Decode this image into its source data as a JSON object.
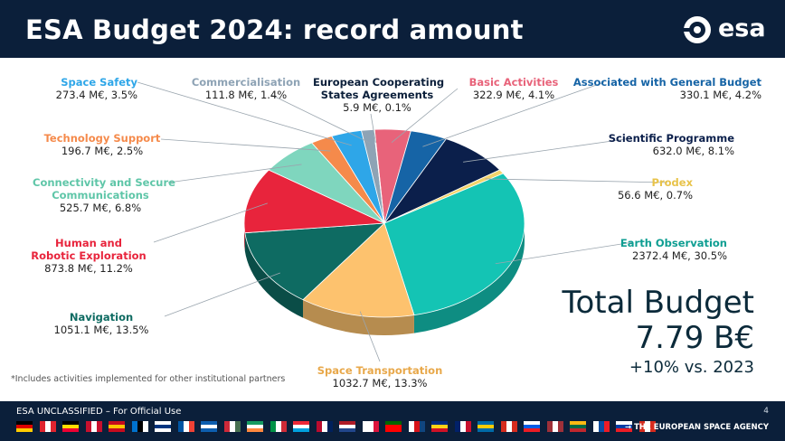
{
  "slide": {
    "title": "ESA Budget 2024: record amount",
    "logo_text": "esa",
    "logo_icon": "esa-logo-icon",
    "footnote": "*Includes activities implemented for other institutional partners",
    "total": {
      "label": "Total Budget",
      "value": "7.79 B€",
      "change": "+10% vs. 2023"
    },
    "footer": {
      "classification": "ESA UNCLASSIFIED – For Official Use",
      "agency": "→ THE EUROPEAN SPACE AGENCY",
      "page": "4"
    }
  },
  "chart_data": {
    "type": "pie",
    "title": "ESA Budget 2024: record amount",
    "unit": "M€",
    "slices": [
      {
        "name": "Basic Activities",
        "value": 322.9,
        "percent": 4.1,
        "label_value": "322.9 M€, 4.1%",
        "color": "#e8637a"
      },
      {
        "name": "Associated with General Budget",
        "value": 330.1,
        "percent": 4.2,
        "label_value": "330.1 M€, 4.2%",
        "color": "#1664a6"
      },
      {
        "name": "Scientific Programme",
        "value": 632.0,
        "percent": 8.1,
        "label_value": "632.0 M€, 8.1%",
        "color": "#0b1f4b"
      },
      {
        "name": "Prodex",
        "value": 56.6,
        "percent": 0.7,
        "label_value": "56.6 M€, 0.7%",
        "color": "#f3d36a"
      },
      {
        "name": "Earth Observation",
        "value": 2372.4,
        "percent": 30.5,
        "label_value": "2372.4 M€, 30.5%",
        "color": "#14c4b4"
      },
      {
        "name": "Space Transportation",
        "value": 1032.7,
        "percent": 13.3,
        "label_value": "1032.7 M€, 13.3%",
        "color": "#fdc26e"
      },
      {
        "name": "Navigation",
        "value": 1051.1,
        "percent": 13.5,
        "label_value": "1051.1 M€, 13.5%",
        "color": "#0e6b62"
      },
      {
        "name": "Human and Robotic Exploration",
        "value": 873.8,
        "percent": 11.2,
        "label_value": "873.8 M€, 11.2%",
        "color": "#e8243c"
      },
      {
        "name": "Connectivity and Secure Communications",
        "value": 525.7,
        "percent": 6.8,
        "label_value": "525.7 M€, 6.8%",
        "color": "#7fd6be"
      },
      {
        "name": "Technology Support",
        "value": 196.7,
        "percent": 2.5,
        "label_value": "196.7 M€, 2.5%",
        "color": "#f58a4b"
      },
      {
        "name": "Space Safety",
        "value": 273.4,
        "percent": 3.5,
        "label_value": "273.4 M€, 3.5%",
        "color": "#2ea6e8"
      },
      {
        "name": "Commercialisation",
        "value": 111.8,
        "percent": 1.4,
        "label_value": "111.8 M€, 1.4%",
        "color": "#8ea3b5"
      },
      {
        "name": "European Cooperating States Agreements",
        "value": 5.9,
        "percent": 0.1,
        "label_value": "5.9 M€, 0.1%",
        "color": "#0b1f3a"
      }
    ],
    "labels": {
      "space_safety": {
        "name": "Space Safety",
        "value": "273.4 M€, 3.5%",
        "name_color": "#2ea6e8"
      },
      "commercialisation": {
        "name": "Commercialisation",
        "value": "111.8 M€, 1.4%",
        "name_color": "#8ea3b5"
      },
      "ecsa": {
        "name_line1": "European Cooperating",
        "name_line2": "States Agreements",
        "value": "5.9 M€, 0.1%",
        "name_color": "#0b1f3a"
      },
      "basic": {
        "name": "Basic Activities",
        "value": "322.9 M€, 4.1%",
        "name_color": "#e8637a"
      },
      "assoc": {
        "name": "Associated with General Budget",
        "value": "330.1 M€, 4.2%",
        "name_color": "#1664a6"
      },
      "science": {
        "name": "Scientific Programme",
        "value": "632.0 M€, 8.1%",
        "name_color": "#0b1f4b"
      },
      "prodex": {
        "name": "Prodex",
        "value": "56.6 M€, 0.7%",
        "name_color": "#e8c34a"
      },
      "eo": {
        "name": "Earth Observation",
        "value": "2372.4 M€, 30.5%",
        "name_color": "#0e9e92"
      },
      "transport": {
        "name": "Space Transportation",
        "value": "1032.7 M€, 13.3%",
        "name_color": "#e8a84a"
      },
      "navigation": {
        "name": "Navigation",
        "value": "1051.1 M€, 13.5%",
        "name_color": "#0e6b62"
      },
      "human": {
        "name_line1": "Human and",
        "name_line2": "Robotic Exploration",
        "value": "873.8 M€, 11.2%",
        "name_color": "#e8243c"
      },
      "connectivity": {
        "name_line1": "Connectivity and Secure",
        "name_line2": "Communications",
        "value": "525.7 M€, 6.8%",
        "name_color": "#5fc6a8"
      },
      "techsupport": {
        "name": "Technology Support",
        "value": "196.7 M€, 2.5%",
        "name_color": "#f58a4b"
      }
    }
  },
  "flags": [
    "DE",
    "AT",
    "BE",
    "DK",
    "ES",
    "EE",
    "FI",
    "FR",
    "GR",
    "HU",
    "IE",
    "IT",
    "LU",
    "NO",
    "NL",
    "PL",
    "PT",
    "CZ",
    "RO",
    "UK",
    "SE",
    "CH",
    "SI",
    "LV",
    "LT",
    "SK",
    "SL",
    "CA"
  ]
}
